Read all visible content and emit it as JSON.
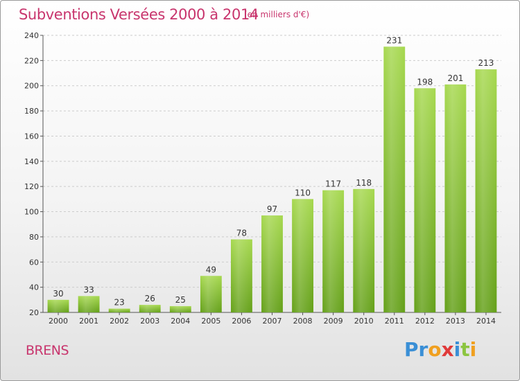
{
  "title": "Subventions Versées 2000 à 2014",
  "subtitle": "(en milliers d'€)",
  "commune": "BRENS",
  "logo": {
    "text": "Proxiti",
    "letter_colors": [
      "#3a8fd6",
      "#3a8fd6",
      "#f0a020",
      "#e03a3a",
      "#3a8fd6",
      "#8cc540",
      "#f0a020"
    ]
  },
  "colors": {
    "title": "#c8356d",
    "bar_top": "#a6d84f",
    "bar_bottom": "#64a019",
    "grid": "#cccccc",
    "text": "#333333"
  },
  "chart_data": {
    "type": "bar",
    "title": "Subventions Versées 2000 à 2014",
    "subtitle": "(en milliers d'€)",
    "categories": [
      "2000",
      "2001",
      "2002",
      "2003",
      "2004",
      "2005",
      "2006",
      "2007",
      "2008",
      "2009",
      "2010",
      "2011",
      "2012",
      "2013",
      "2014"
    ],
    "values": [
      30,
      33,
      23,
      26,
      25,
      49,
      78,
      97,
      110,
      117,
      118,
      231,
      198,
      201,
      213
    ],
    "ylim": [
      20,
      240
    ],
    "yticks": [
      20,
      40,
      60,
      80,
      100,
      120,
      140,
      160,
      180,
      200,
      220,
      240
    ],
    "grid": true,
    "data_labels": true
  }
}
